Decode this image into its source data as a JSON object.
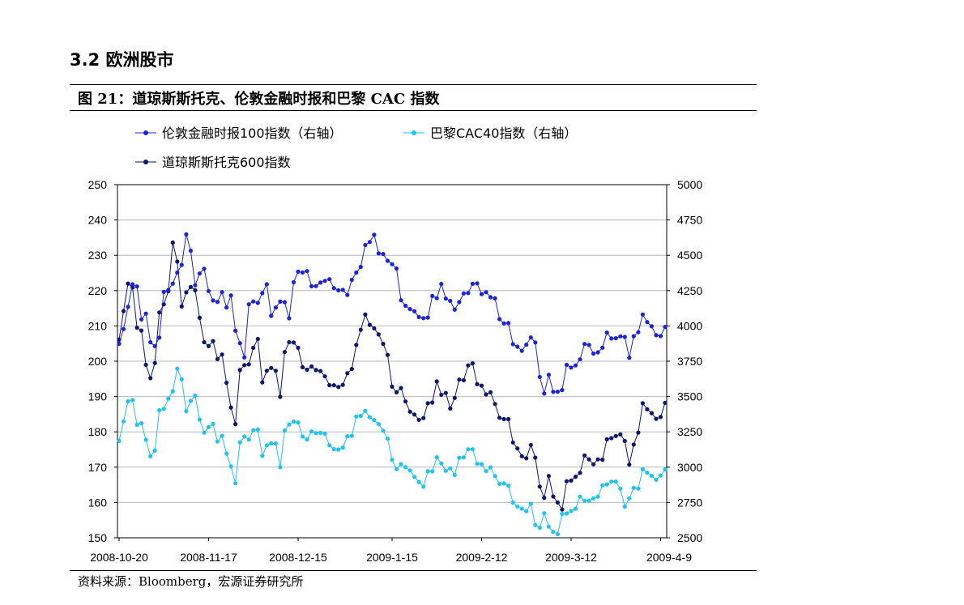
{
  "section_title": "3.2 欧洲股市",
  "figure_title": "图 21：道琼斯斯托克、伦敦金融时报和巴黎 CAC 指数",
  "source": "资料来源：Bloomberg，宏源证券研究所",
  "chart_data": {
    "type": "line",
    "title": "",
    "xlabel": "",
    "ylabel": "",
    "x_tick_labels": [
      "2008-10-20",
      "2008-11-17",
      "2008-12-15",
      "2009-1-15",
      "2009-2-12",
      "2009-3-12",
      "2009-4-9"
    ],
    "y_left": {
      "min": 150,
      "max": 250,
      "ticks": [
        150,
        160,
        170,
        180,
        190,
        200,
        210,
        220,
        230,
        240,
        250
      ]
    },
    "y_right": {
      "min": 2500,
      "max": 5000,
      "ticks": [
        2500,
        2750,
        3000,
        3250,
        3500,
        3750,
        4000,
        4250,
        4500,
        4750,
        5000
      ]
    },
    "grid": "horizontal",
    "legend_position": "top",
    "series": [
      {
        "name": "伦敦金融时报100指数（右轴）",
        "axis": "right",
        "color": "#1c23dc",
        "values": [
          3874,
          3977,
          4135,
          4295,
          4279,
          4046,
          4087,
          3884,
          3857,
          3917,
          4241,
          4254,
          4300,
          4378,
          4432,
          4648,
          4532,
          4287,
          4371,
          4405,
          4247,
          4180,
          4170,
          4239,
          4130,
          4216,
          3966,
          3878,
          3777,
          4153,
          4173,
          4163,
          4232,
          4295,
          4071,
          4130,
          4172,
          4168,
          4054,
          4309,
          4384,
          4378,
          4388,
          4281,
          4282,
          4307,
          4319,
          4331,
          4268,
          4252,
          4256,
          4219,
          4326,
          4378,
          4418,
          4573,
          4594,
          4645,
          4513,
          4509,
          4461,
          4437,
          4406,
          4182,
          4143,
          4119,
          4104,
          4063,
          4055,
          4059,
          4212,
          4196,
          4297,
          4193,
          4177,
          4115,
          4169,
          4230,
          4233,
          4298,
          4301,
          4225,
          4239,
          4203,
          4195,
          4048,
          4018,
          4020,
          3871,
          3853,
          3824,
          3867,
          3918,
          3883,
          3638,
          3521,
          3654,
          3533,
          3534,
          3546,
          3724,
          3705,
          3720,
          3763,
          3872,
          3865,
          3804,
          3813,
          3846,
          3953,
          3911,
          3913,
          3926,
          3922,
          3774,
          3927,
          3955,
          4081,
          4027,
          3997,
          3934,
          3928,
          3993
        ]
      },
      {
        "name": "巴黎CAC40指数（右轴）",
        "axis": "right",
        "color": "#1fc4f0",
        "values": [
          3186,
          3324,
          3466,
          3475,
          3300,
          3311,
          3194,
          3077,
          3117,
          3403,
          3413,
          3485,
          3537,
          3697,
          3622,
          3396,
          3469,
          3507,
          3337,
          3244,
          3283,
          3306,
          3181,
          3222,
          3096,
          3005,
          2886,
          3176,
          3217,
          3195,
          3262,
          3266,
          3080,
          3154,
          3168,
          3168,
          3000,
          3259,
          3302,
          3323,
          3316,
          3217,
          3196,
          3253,
          3241,
          3243,
          3237,
          3154,
          3128,
          3125,
          3139,
          3219,
          3222,
          3359,
          3363,
          3399,
          3354,
          3334,
          3305,
          3258,
          3201,
          3052,
          2986,
          3021,
          3000,
          2977,
          2931,
          2895,
          2862,
          2971,
          2970,
          3070,
          3026,
          2974,
          2992,
          2945,
          3067,
          3069,
          3127,
          3127,
          3024,
          3021,
          2972,
          2998,
          2937,
          2882,
          2885,
          2869,
          2749,
          2722,
          2705,
          2688,
          2741,
          2590,
          2571,
          2674,
          2579,
          2542,
          2526,
          2669,
          2672,
          2689,
          2706,
          2791,
          2762,
          2762,
          2779,
          2791,
          2871,
          2878,
          2898,
          2898,
          2848,
          2721,
          2780,
          2854,
          2848,
          2985,
          2961,
          2939,
          2911,
          2941,
          2984
        ]
      },
      {
        "name": "道琼斯斯托克600指数",
        "axis": "left",
        "color": "#0e1570",
        "values": [
          206.1,
          214.2,
          222.0,
          220.9,
          209.5,
          208.7,
          199.0,
          195.2,
          199.5,
          213.8,
          216.1,
          219.8,
          233.6,
          228.2,
          215.5,
          219.5,
          221.0,
          220.1,
          212.3,
          205.4,
          204.3,
          205.7,
          200.6,
          201.9,
          193.9,
          186.9,
          182.2,
          197.5,
          198.9,
          199.1,
          203.8,
          206.3,
          194.0,
          197.3,
          198.1,
          197.3,
          189.9,
          202.6,
          205.4,
          205.3,
          203.8,
          198.3,
          197.6,
          198.5,
          197.5,
          197.2,
          195.7,
          193.2,
          193.2,
          192.7,
          193.3,
          196.6,
          197.8,
          204.6,
          208.9,
          213.2,
          210.3,
          209.3,
          207.6,
          204.9,
          201.8,
          192.8,
          191.2,
          192.4,
          188.6,
          185.7,
          184.9,
          183.4,
          183.9,
          188.1,
          188.3,
          194.3,
          190.5,
          191.0,
          186.6,
          189.6,
          194.8,
          194.6,
          198.8,
          199.4,
          193.5,
          193.1,
          190.6,
          191.2,
          187.9,
          184.0,
          183.6,
          183.6,
          177.0,
          175.3,
          173.1,
          172.5,
          176.3,
          172.7,
          164.5,
          161.3,
          167.5,
          161.7,
          160.0,
          158.0,
          166.0,
          166.2,
          167.3,
          168.4,
          173.3,
          172.2,
          170.8,
          172.2,
          172.1,
          177.9,
          178.2,
          178.8,
          179.3,
          177.4,
          170.7,
          176.4,
          179.8,
          188.1,
          186.4,
          185.3,
          183.7,
          184.2,
          188.2
        ]
      }
    ]
  }
}
